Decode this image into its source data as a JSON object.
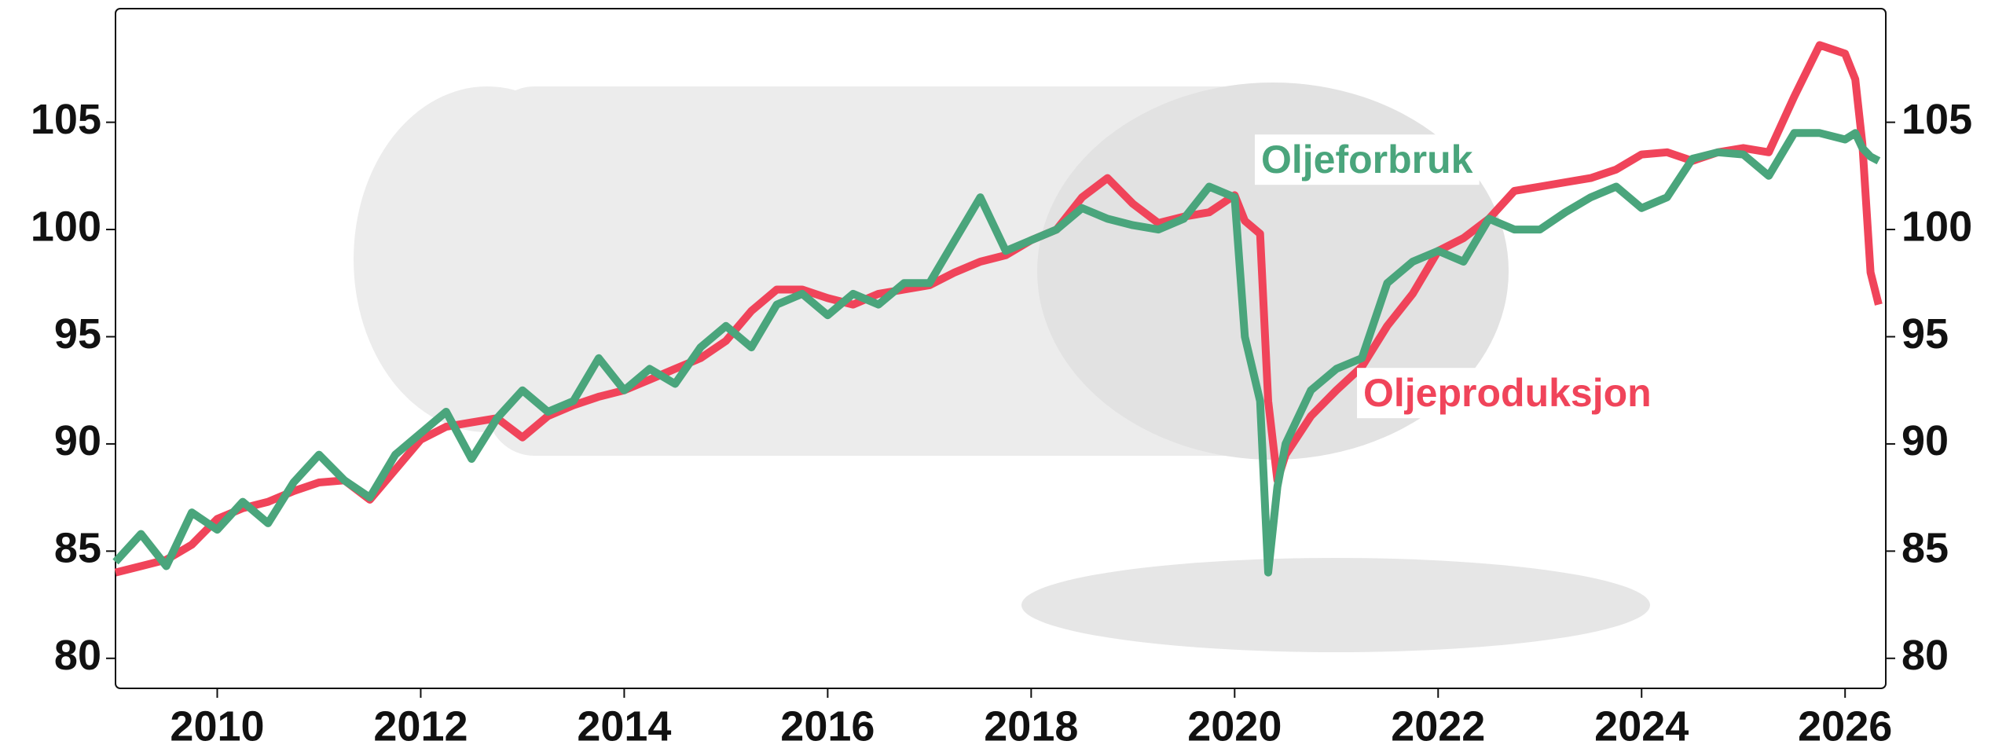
{
  "chart_data": {
    "type": "line",
    "x": [
      2009,
      2009.25,
      2009.5,
      2009.75,
      2010,
      2010.25,
      2010.5,
      2010.75,
      2011,
      2011.25,
      2011.5,
      2011.75,
      2012,
      2012.25,
      2012.5,
      2012.75,
      2013,
      2013.25,
      2013.5,
      2013.75,
      2014,
      2014.25,
      2014.5,
      2014.75,
      2015,
      2015.25,
      2015.5,
      2015.75,
      2016,
      2016.25,
      2016.5,
      2016.75,
      2017,
      2017.25,
      2017.5,
      2017.75,
      2018,
      2018.25,
      2018.5,
      2018.75,
      2019,
      2019.25,
      2019.5,
      2019.75,
      2020,
      2020.1,
      2020.25,
      2020.33,
      2020.42,
      2020.5,
      2020.75,
      2021,
      2021.25,
      2021.5,
      2021.75,
      2022,
      2022.25,
      2022.5,
      2022.75,
      2023,
      2023.25,
      2023.5,
      2023.75,
      2024,
      2024.25,
      2024.5,
      2024.75,
      2025,
      2025.25,
      2025.5,
      2025.75,
      2026,
      2026.1,
      2026.17,
      2026.25,
      2026.33
    ],
    "series": [
      {
        "name": "Oljeproduksjon",
        "color": "#f0445a",
        "values": [
          84,
          84.3,
          84.6,
          85.3,
          86.5,
          87,
          87.3,
          87.8,
          88.2,
          88.3,
          87.4,
          88.8,
          90.2,
          90.8,
          91,
          91.2,
          90.3,
          91.3,
          91.8,
          92.2,
          92.5,
          93,
          93.5,
          94,
          94.8,
          96.2,
          97.2,
          97.2,
          96.8,
          96.5,
          97,
          97.2,
          97.4,
          98,
          98.5,
          98.8,
          99.5,
          100,
          101.5,
          102.4,
          101.2,
          100.3,
          100.6,
          100.8,
          101.6,
          100.4,
          99.8,
          92,
          88.3,
          89.5,
          91.3,
          92.5,
          93.6,
          95.5,
          97,
          99,
          99.6,
          100.5,
          101.8,
          102,
          102.2,
          102.4,
          102.8,
          103.5,
          103.6,
          103.2,
          103.6,
          103.8,
          103.6,
          106.2,
          108.6,
          108.2,
          107,
          104,
          98,
          96.5
        ]
      },
      {
        "name": "Oljeforbruk",
        "color": "#4aa57c",
        "values": [
          84.5,
          85.8,
          84.3,
          86.8,
          86,
          87.3,
          86.3,
          88.2,
          89.5,
          88.3,
          87.5,
          89.5,
          90.5,
          91.5,
          89.3,
          91.2,
          92.5,
          91.5,
          92,
          94,
          92.5,
          93.5,
          92.8,
          94.5,
          95.5,
          94.5,
          96.5,
          97,
          96,
          97,
          96.5,
          97.5,
          97.5,
          99.5,
          101.5,
          99,
          99.5,
          100,
          101,
          100.5,
          100.2,
          100,
          100.5,
          102,
          101.5,
          95,
          92,
          84,
          88,
          90,
          92.5,
          93.5,
          94,
          97.5,
          98.5,
          99,
          98.5,
          100.5,
          100,
          100,
          100.8,
          101.5,
          102,
          101,
          101.5,
          103.3,
          103.6,
          103.5,
          102.5,
          104.5,
          104.5,
          104.2,
          104.5,
          103.8,
          103.4,
          103.2
        ]
      }
    ],
    "xlim": [
      2009,
      2026.4
    ],
    "xticks": [
      2010,
      2012,
      2014,
      2016,
      2018,
      2020,
      2022,
      2024,
      2026
    ],
    "ylim": [
      78.6,
      110.3
    ],
    "yticks": [
      80,
      85,
      90,
      95,
      100,
      105
    ],
    "grid": false
  }
}
